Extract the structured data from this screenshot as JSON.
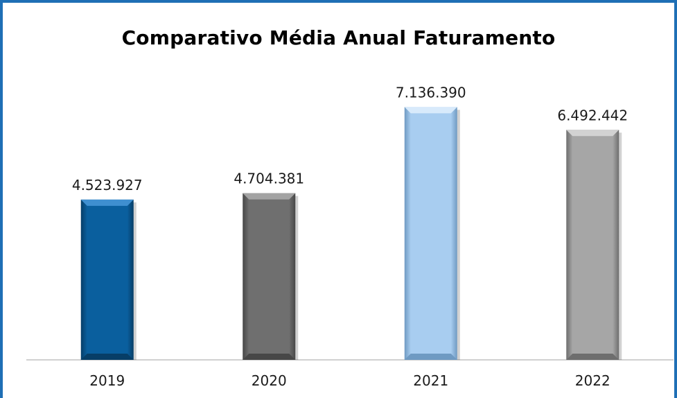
{
  "chart_data": {
    "type": "bar",
    "title": "Comparativo Média Anual Faturamento",
    "xlabel": "",
    "ylabel": "",
    "categories": [
      "2019",
      "2020",
      "2021",
      "2022"
    ],
    "values": [
      4523927,
      4704381,
      7136390,
      6492442
    ],
    "value_labels": [
      "4.523.927",
      "4.704.381",
      "7.136.390",
      "6.492.442"
    ],
    "ylim": [
      0,
      7300000
    ],
    "grid": false,
    "legend": "none",
    "bar_colors": [
      "#0a5f9e",
      "#6f6f6f",
      "#a8cdf0",
      "#a6a6a6"
    ],
    "bar_highlights": [
      "#3f8fd0",
      "#a3a3a3",
      "#d8eafb",
      "#d2d2d2"
    ],
    "bar_shadows": [
      "#073e67",
      "#474747",
      "#6f9ac2",
      "#6e6e6e"
    ]
  }
}
